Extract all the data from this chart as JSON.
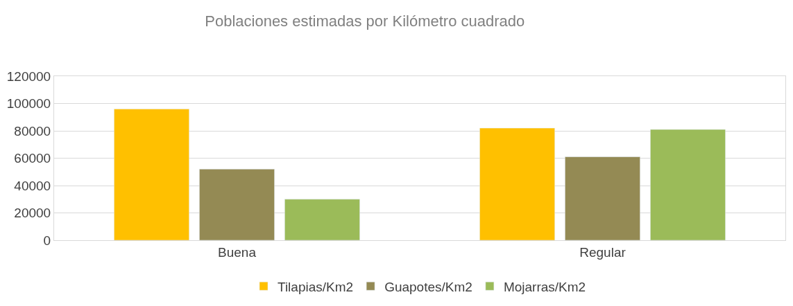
{
  "chart_data": {
    "type": "bar",
    "title": "Poblaciones estimadas por Kilómetro cuadrado",
    "categories": [
      "Buena",
      "Regular"
    ],
    "series": [
      {
        "name": "Tilapias/Km2",
        "color": "#ffc000",
        "values": [
          96000,
          82000
        ]
      },
      {
        "name": "Guapotes/Km2",
        "color": "#948a54",
        "values": [
          52000,
          61000
        ]
      },
      {
        "name": "Mojarras/Km2",
        "color": "#9bbb59",
        "values": [
          30000,
          81000
        ]
      }
    ],
    "ylim": [
      0,
      120000
    ],
    "yticks": [
      0,
      20000,
      40000,
      60000,
      80000,
      100000,
      120000
    ],
    "grid": "y",
    "legend": "bottom"
  }
}
